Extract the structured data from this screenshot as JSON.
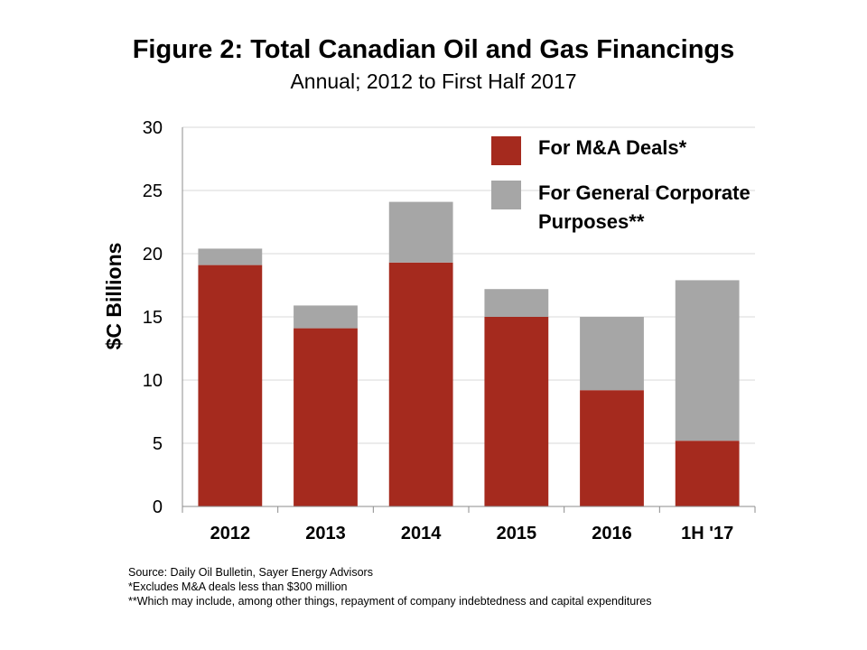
{
  "chart_data": {
    "type": "bar",
    "stacked": true,
    "title": "Figure 2: Total Canadian Oil and Gas Financings",
    "subtitle": "Annual; 2012 to First Half 2017",
    "ylabel": "$C Billions",
    "xlabel": "",
    "ylim": [
      0,
      30
    ],
    "yticks": [
      0,
      5,
      10,
      15,
      20,
      25,
      30
    ],
    "grid": true,
    "categories": [
      "2012",
      "2013",
      "2014",
      "2015",
      "2016",
      "1H '17"
    ],
    "series": [
      {
        "name": "For M&A Deals*",
        "color": "#a52a1e",
        "values": [
          19.1,
          14.1,
          19.3,
          15.0,
          9.2,
          5.2
        ]
      },
      {
        "name": "For General Corporate Purposes**",
        "color": "#a6a6a6",
        "values": [
          1.3,
          1.8,
          4.8,
          2.2,
          5.8,
          12.7
        ]
      }
    ],
    "legend_position": "top-right",
    "legend_lines": [
      [
        "For M&A Deals*"
      ],
      [
        "For General Corporate",
        "Purposes**"
      ]
    ]
  },
  "notes": [
    "Source: Daily Oil Bulletin, Sayer Energy Advisors",
    "*Excludes M&A deals less than $300 million",
    "**Which may include, among other things, repayment of company indebtedness and capital expenditures"
  ]
}
